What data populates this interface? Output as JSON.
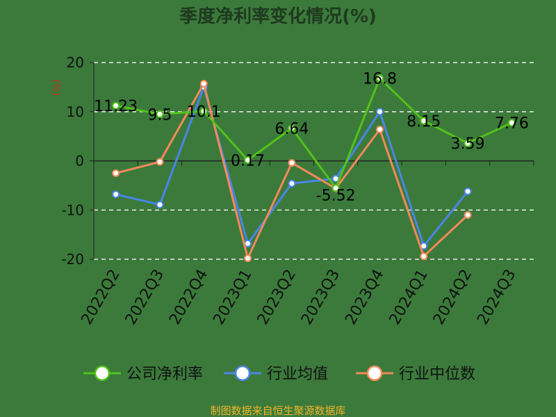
{
  "chart_data": {
    "type": "line",
    "title": "季度净利率变化情况(%)",
    "ylabel": "(%)",
    "ylim": [
      -20,
      20
    ],
    "yticks": [
      -20,
      -10,
      0,
      10,
      20
    ],
    "grid": true,
    "legend_position": "bottom",
    "categories": [
      "2022Q2",
      "2022Q3",
      "2022Q4",
      "2023Q1",
      "2023Q2",
      "2023Q3",
      "2023Q4",
      "2024Q1",
      "2024Q2",
      "2024Q3"
    ],
    "series": [
      {
        "name": "公司净利率",
        "color": "#52c21a",
        "values": [
          11.23,
          9.5,
          10.1,
          0.17,
          6.64,
          -5.52,
          16.8,
          8.15,
          3.59,
          7.76
        ],
        "labels": [
          "11.23",
          "9.5",
          "10.1",
          "0.17",
          "6.64",
          "-5.52",
          "16.8",
          "8.15",
          "3.59",
          "7.76"
        ]
      },
      {
        "name": "行业均值",
        "color": "#4a86e8",
        "values": [
          -6.8,
          -8.9,
          15.0,
          -16.8,
          -4.6,
          -3.6,
          10.0,
          -17.3,
          -6.2,
          null
        ]
      },
      {
        "name": "行业中位数",
        "color": "#f28a5a",
        "values": [
          -2.5,
          -0.2,
          15.7,
          -19.8,
          -0.4,
          -5.6,
          6.4,
          -19.4,
          -11.0,
          null
        ]
      }
    ],
    "source": "制图数据来自恒生聚源数据库"
  }
}
